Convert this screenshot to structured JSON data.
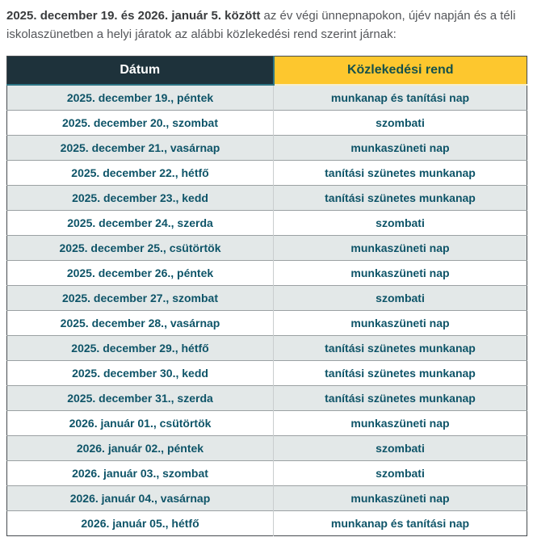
{
  "intro": {
    "bold": "2025. december 19. és 2026. január 5. között",
    "rest": " az év végi ünnepnapokon, újév napján és a téli iskolaszünetben a helyi járatok az alábbi közlekedési rend szerint járnak:"
  },
  "table": {
    "headers": [
      "Dátum",
      "Közlekedési rend"
    ],
    "rows": [
      [
        "2025. december 19., péntek",
        "munkanap és tanítási nap"
      ],
      [
        "2025. december 20., szombat",
        "szombati"
      ],
      [
        "2025. december 21., vasárnap",
        "munkaszüneti nap"
      ],
      [
        "2025. december 22., hétfő",
        "tanítási szünetes munkanap"
      ],
      [
        "2025. december 23., kedd",
        "tanítási szünetes munkanap"
      ],
      [
        "2025. december 24., szerda",
        "szombati"
      ],
      [
        "2025. december 25., csütörtök",
        "munkaszüneti nap"
      ],
      [
        "2025. december 26., péntek",
        "munkaszüneti nap"
      ],
      [
        "2025. december 27., szombat",
        "szombati"
      ],
      [
        "2025. december 28., vasárnap",
        "munkaszüneti nap"
      ],
      [
        "2025. december 29., hétfő",
        "tanítási szünetes munkanap"
      ],
      [
        "2025. december 30., kedd",
        "tanítási szünetes munkanap"
      ],
      [
        "2025. december 31., szerda",
        "tanítási szünetes munkanap"
      ],
      [
        "2026. január 01., csütörtök",
        "munkaszüneti nap"
      ],
      [
        "2026. január 02., péntek",
        "szombati"
      ],
      [
        "2026. január 03., szombat",
        "szombati"
      ],
      [
        "2026. január 04., vasárnap",
        "munkaszüneti nap"
      ],
      [
        "2026. január 05., hétfő",
        "munkanap és tanítási nap"
      ]
    ]
  },
  "colors": {
    "header_dark_bg": "#1e323b",
    "header_dark_text": "#ffffff",
    "header_accent_bg": "#fdc72e",
    "header_accent_text": "#15514b",
    "header_divider": "#2d7585",
    "row_alt_bg": "#e3e8e8",
    "row_bg": "#ffffff",
    "row_text": "#0e5468",
    "outer_border": "#464b4f",
    "row_divider": "#9ba1a3",
    "col_divider": "#c9cdce",
    "intro_text": "#54565a",
    "intro_bold": "#3a3c3e"
  }
}
